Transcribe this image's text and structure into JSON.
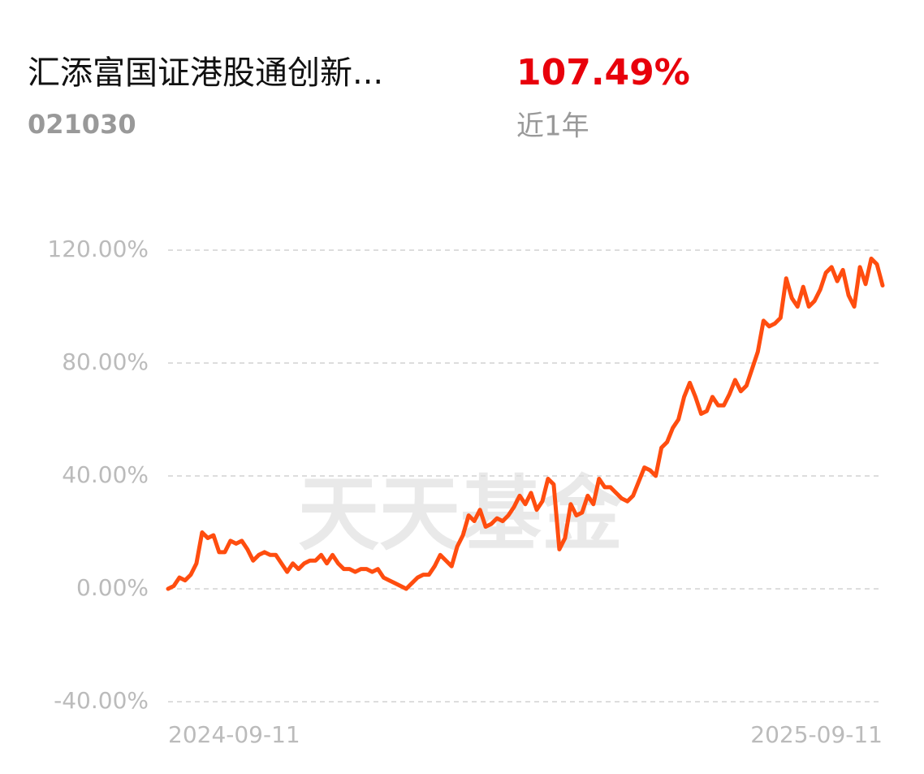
{
  "header": {
    "fund_name": "汇添富国证港股通创新...",
    "fund_code": "021030",
    "return": "107.49%",
    "period": "近1年"
  },
  "chart_data": {
    "type": "line",
    "watermark": "天天基金",
    "color": "#ff4d0f",
    "grid": true,
    "ylim": [
      -40,
      120
    ],
    "yticks": [
      {
        "value": -40,
        "label": "-40.00%"
      },
      {
        "value": 0,
        "label": "0.00%"
      },
      {
        "value": 40,
        "label": "40.00%"
      },
      {
        "value": 80,
        "label": "80.00%"
      },
      {
        "value": 120,
        "label": "120.00%"
      }
    ],
    "categories": [
      "2024-09-11",
      null,
      null,
      null,
      null,
      null,
      null,
      null,
      null,
      null,
      null,
      null,
      null,
      null,
      null,
      null,
      null,
      null,
      null,
      null,
      null,
      null,
      null,
      null,
      null,
      null,
      null,
      null,
      null,
      null,
      null,
      null,
      null,
      null,
      null,
      null,
      null,
      null,
      null,
      null,
      null,
      null,
      null,
      null,
      null,
      null,
      null,
      null,
      null,
      null,
      null,
      null,
      null,
      null,
      null,
      null,
      null,
      null,
      null,
      null,
      null,
      null,
      null,
      null,
      null,
      null,
      null,
      null,
      null,
      null,
      null,
      null,
      null,
      null,
      null,
      null,
      null,
      null,
      null,
      null,
      null,
      null,
      null,
      null,
      null,
      null,
      null,
      null,
      null,
      null,
      null,
      null,
      null,
      null,
      null,
      null,
      null,
      null,
      null,
      null,
      null,
      null,
      null,
      null,
      null,
      null,
      null,
      null,
      null,
      null,
      null,
      null,
      null,
      null,
      null,
      null,
      null,
      null,
      null,
      null,
      null,
      null,
      null,
      null,
      null,
      null,
      "2025-09-11"
    ],
    "values": [
      0,
      1,
      4,
      3,
      5,
      9,
      20,
      18,
      19,
      13,
      13,
      17,
      16,
      17,
      14,
      10,
      12,
      13,
      12,
      12,
      9,
      6,
      9,
      7,
      9,
      10,
      10,
      12,
      9,
      12,
      9,
      7,
      7,
      6,
      7,
      7,
      6,
      7,
      4,
      3,
      2,
      1,
      0,
      2,
      4,
      5,
      5,
      8,
      12,
      10,
      8,
      15,
      19,
      26,
      24,
      28,
      22,
      23,
      25,
      24,
      26,
      29,
      33,
      30,
      34,
      28,
      31,
      39,
      37,
      14,
      18,
      30,
      26,
      27,
      33,
      30,
      39,
      36,
      36,
      34,
      32,
      31,
      33,
      38,
      43,
      42,
      40,
      50,
      52,
      57,
      60,
      68,
      73,
      68,
      62,
      63,
      68,
      65,
      65,
      69,
      74,
      70,
      72,
      78,
      84,
      95,
      93,
      94,
      96,
      110,
      103,
      100,
      107,
      100,
      102,
      106,
      112,
      114,
      109,
      113,
      104,
      100,
      114,
      108,
      117,
      115,
      107.49
    ]
  }
}
